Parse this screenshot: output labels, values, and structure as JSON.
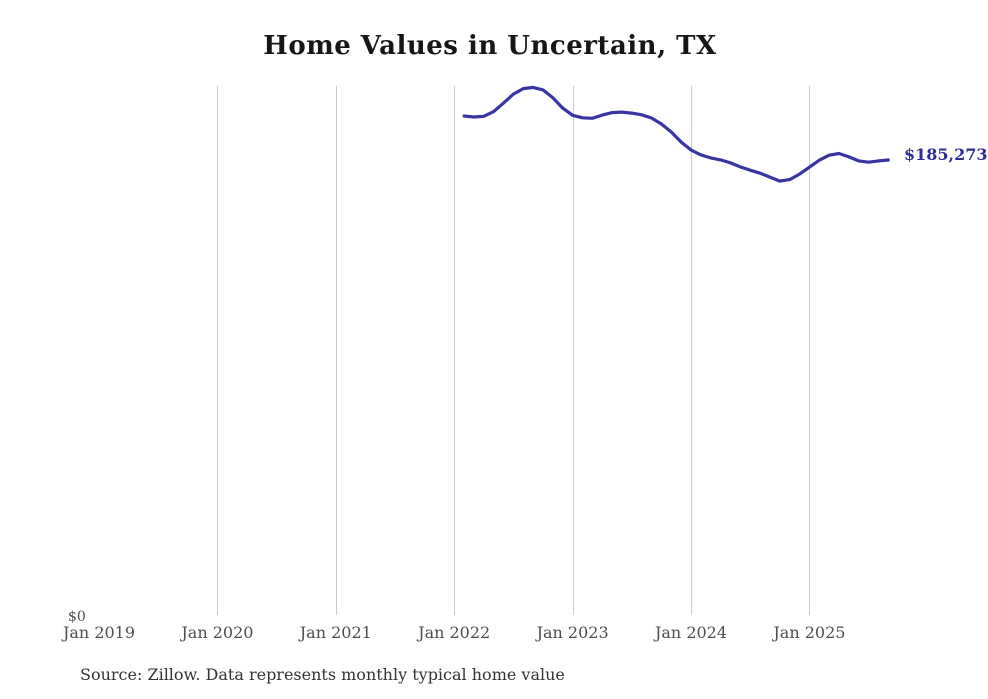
{
  "header": {
    "title": "Home Values in Uncertain, TX"
  },
  "chart": {
    "y_axis": {
      "zero_label": "$0"
    },
    "x_axis": {
      "ticks": [
        "Jan 2019",
        "Jan 2020",
        "Jan 2021",
        "Jan 2022",
        "Jan 2023",
        "Jan 2024",
        "Jan 2025"
      ]
    },
    "end_label": "$185,273",
    "line_color": "#3835a3",
    "grid_color": "#cdcdcd"
  },
  "footer": {
    "source": "Source: Zillow. Data represents monthly typical home value"
  },
  "chart_data": {
    "type": "line",
    "title": "Home Values in Uncertain, TX",
    "frequency": "monthly",
    "x_start": "2022-02",
    "x_end": "2025-09",
    "x": [
      "2022-02",
      "2022-03",
      "2022-04",
      "2022-05",
      "2022-06",
      "2022-07",
      "2022-08",
      "2022-09",
      "2022-10",
      "2022-11",
      "2022-12",
      "2023-01",
      "2023-02",
      "2023-03",
      "2023-04",
      "2023-05",
      "2023-06",
      "2023-07",
      "2023-08",
      "2023-09",
      "2023-10",
      "2023-11",
      "2023-12",
      "2024-01",
      "2024-02",
      "2024-03",
      "2024-04",
      "2024-05",
      "2024-06",
      "2024-07",
      "2024-08",
      "2024-09",
      "2024-10",
      "2024-11",
      "2024-12",
      "2025-01",
      "2025-02",
      "2025-03",
      "2025-04",
      "2025-05",
      "2025-06",
      "2025-07",
      "2025-08",
      "2025-09"
    ],
    "values": [
      202900,
      202500,
      202800,
      204700,
      208100,
      211700,
      213900,
      214400,
      213400,
      210200,
      206100,
      203200,
      202200,
      202000,
      203300,
      204300,
      204500,
      204100,
      203400,
      202100,
      199700,
      196500,
      192500,
      189300,
      187300,
      186100,
      185300,
      184100,
      182500,
      181200,
      180000,
      178400,
      176800,
      177400,
      179600,
      182400,
      185200,
      187200,
      187900,
      186500,
      184900,
      184400,
      184900,
      185273
    ],
    "final_value": 185273,
    "final_value_label": "$185,273",
    "x_axis_ticks": [
      "Jan 2019",
      "Jan 2020",
      "Jan 2021",
      "Jan 2022",
      "Jan 2023",
      "Jan 2024",
      "Jan 2025"
    ],
    "ylabel": "",
    "xlabel": "",
    "ylim": [
      0,
      222000
    ],
    "y_zero_label": "$0",
    "grid": "vertical-only",
    "legend": "none",
    "annotations": [
      "$185,273 at line end"
    ],
    "source": "Source: Zillow. Data represents monthly typical home value"
  }
}
